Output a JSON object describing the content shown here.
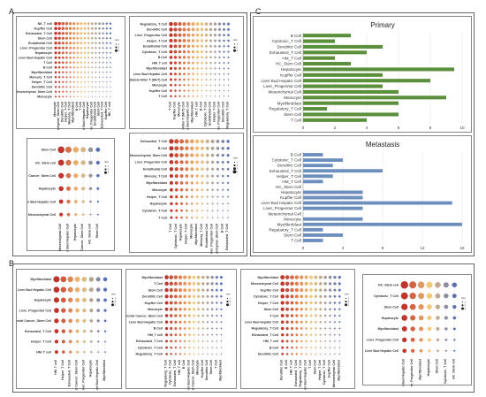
{
  "panels": {
    "A": "A",
    "B": "B",
    "C": "C"
  },
  "colors": {
    "primary_bar": "#5a8f3c",
    "metastasis_bar": "#6d8fbd",
    "dot_high": "#c0352b",
    "dot_mid": "#f2c879",
    "dot_low": "#5b6fb5",
    "grid": "#dddddd"
  },
  "dotplots": {
    "a1": {
      "rows": [
        "NK_T cell",
        "Kupffer Cell",
        "Exhausted_T Cell",
        "Stem Cell",
        "Endothelial Cell",
        "Liver_Progenitor Cell",
        "Hepatocyte",
        "Liver Bud Hepatic Cell",
        "T Cell",
        "B Cell",
        "Myofibroblast",
        "Memory_T Cell",
        "Helper_T Cell",
        "Dendritic Cell",
        "Mesenchymal_Stem Cell",
        "Monocyte"
      ],
      "cols": [
        "Monocyte",
        "Mesenchymal_Stem Cell",
        "Dendritic Cell",
        "Helper_T Cell",
        "Memory_T Cell",
        "Myofibroblast",
        "B Cell",
        "T Cell",
        "Liver Bud Hepatic Cell",
        "Hepatocyte",
        "Liver_Progenitor Cell",
        "Endothelial Cell",
        "Stem Cell",
        "Exhausted_T Cell",
        "Kupffer Cell",
        "NK_T cell"
      ],
      "legend": {
        "title": "size",
        "sizes": [
          "1",
          "2",
          "3"
        ]
      }
    },
    "a2": {
      "rows": [
        "Regulatory_T Cell",
        "Dendritic Cell",
        "Liver_Progenitor Cell",
        "Helper_T Cell",
        "Endothelial Cell",
        "Cytotoxic_T Cell",
        "B Cell",
        "HM_T cell",
        "Myofibroblast",
        "Liver Bud Hepatic Cell",
        "Natural Killer T (NKT) Cell",
        "Monocyte",
        "Kupffer Cell",
        "T Cell"
      ],
      "cols": [
        "T Cell",
        "Kupffer Cell",
        "Monocyte",
        "Natural Killer T (NKT) Cell",
        "Liver Bud Hepatic Cell",
        "Myofibroblast",
        "HM_T cell",
        "B Cell",
        "Cytotoxic_T Cell",
        "Endothelial Cell",
        "Helper_T Cell",
        "Liver_Progenitor Cell",
        "Dendritic Cell",
        "Regulatory_T Cell"
      ],
      "legend": {
        "title": "size",
        "sizes": [
          "1",
          "2",
          "3"
        ]
      }
    },
    "a3": {
      "rows": [
        "Stem Cell",
        "HC_Stem cell",
        "Liver Cancer_Stem Cell",
        "Hepatocyte",
        "Liver Bud Hepatic Cell",
        "Mesenchymal Cell"
      ],
      "cols": [
        "Mesenchymal Cell",
        "Liver Bud Hepatic Cell",
        "Hepatocyte",
        "Liver Cancer_Stem Cell",
        "HC_Stem cell",
        "Stem Cell"
      ],
      "legend": {
        "title": "size",
        "sizes": [
          "1",
          "2",
          "3"
        ]
      }
    },
    "a4": {
      "rows": [
        "Exhausted_T Cell",
        "B Cell",
        "Mesenchymal_Stem Cell",
        "Liver_Progenitor Cell",
        "Endothelial Cell",
        "Memory_T Cell",
        "Myofibroblast",
        "Monocyte",
        "Helper_T Cell",
        "Hepatocyte",
        "Cytotoxic_T Cell",
        "T Cell"
      ],
      "cols": [
        "T Cell",
        "Cytotoxic_T Cell",
        "Hepatocyte",
        "Helper_T Cell",
        "Monocyte",
        "Myofibroblast",
        "Memory_T Cell",
        "Endothelial Cell",
        "Liver_Progenitor Cell",
        "Mesenchymal_Stem Cell",
        "B Cell",
        "Exhausted_T Cell"
      ],
      "legend": {
        "title": "size",
        "sizes": [
          "1",
          "2",
          "3",
          "4"
        ]
      }
    },
    "b1": {
      "rows": [
        "Myofibroblast",
        "Liver Bud Hepatic Cell",
        "Hepatocyte",
        "Liver_Progenitor Cell",
        "Colorectal Cancer_Stem Cell",
        "Exhausted_T Cell",
        "Helper_T Cell",
        "HM_T cell"
      ],
      "cols": [
        "HM_T cell",
        "Helper_T Cell",
        "Exhausted_T Cell",
        "Colorectal Cancer_Stem Cell",
        "Liver_Progenitor Cell",
        "Hepatocyte",
        "Liver Bud Hepatic Cell",
        "Myofibroblast"
      ],
      "legend": {
        "title": "size",
        "sizes": [
          "1",
          "2",
          "3"
        ]
      }
    },
    "b2": {
      "rows": [
        "Myofibroblast",
        "T Cell",
        "Stem Cell",
        "Dendritic Cell",
        "Kupffer Cell",
        "Monocyte",
        "Colorectal Cancer_Stem Cell",
        "Liver Bud Hepatic Cell",
        "B Cell",
        "HM_T cell",
        "Exhausted_T Cell",
        "Cytotoxic_T Cell",
        "Regulatory_T Cell"
      ],
      "cols": [
        "Regulatory_T Cell",
        "Cytotoxic_T Cell",
        "Exhausted_T Cell",
        "HM_T cell",
        "B Cell",
        "Liver Bud Hepatic Cell",
        "Colorectal Cancer_Stem Cell",
        "Monocyte",
        "Kupffer Cell",
        "Dendritic Cell",
        "Stem Cell",
        "T Cell",
        "Myofibroblast"
      ],
      "legend": {
        "title": "size",
        "sizes": [
          "1",
          "2",
          "3"
        ]
      }
    },
    "b3": {
      "rows": [
        "Myofibroblast",
        "Mesenchymal Cell",
        "Kupffer Cell",
        "Cytotoxic_T Cell",
        "Helper_T Cell",
        "Stem Cell",
        "T Cell",
        "Liver Bud Hepatic Cell",
        "Regulatory_T Cell",
        "Exhausted_T Cell",
        "HM_T cell",
        "B Cell",
        "Dendritic Cell"
      ],
      "cols": [
        "Dendritic Cell",
        "B Cell",
        "HM_T cell",
        "Exhausted_T Cell",
        "Regulatory_T Cell",
        "Liver Bud Hepatic Cell",
        "T Cell",
        "Stem Cell",
        "Helper_T Cell",
        "Cytotoxic_T Cell",
        "Kupffer Cell",
        "Mesenchymal Cell",
        "Myofibroblast"
      ],
      "legend": {
        "title": "size",
        "sizes": [
          "1",
          "2",
          "3"
        ]
      }
    },
    "b4": {
      "rows": [
        "HC_Stem cell",
        "Cytotoxic_T Cell",
        "Stem Cell",
        "Hepatocyte",
        "Myofibroblast",
        "Liver_Progenitor Cell",
        "Liver Bud Hepatic Cell"
      ],
      "cols": [
        "Liver Bud Hepatic Cell",
        "Liver_Progenitor Cell",
        "Myofibroblast",
        "Hepatocyte",
        "Stem Cell",
        "Cytotoxic_T Cell",
        "HC_Stem cell"
      ],
      "legend": {
        "title": "size",
        "sizes": [
          "1",
          "2",
          "3"
        ]
      }
    }
  },
  "chart_data": [
    {
      "type": "bar",
      "orientation": "horizontal",
      "title": "Primary",
      "categories": [
        "B Cell",
        "Cytotoxic_T Cell",
        "Dendritic Cell",
        "Exhausted_T Cell",
        "HM_T Cell",
        "HC_Stem Cell",
        "Hepatocyte",
        "Kupffer Cell",
        "Liver Bud Hepatic Cell",
        "Liver_Progenitor Cell",
        "Mesenchymal Cell",
        "Monocyte",
        "Myofibroblast",
        "Regulatory_T Cell",
        "Stem Cell",
        "T Cell"
      ],
      "values": [
        3,
        2,
        5,
        4,
        2,
        3,
        9.5,
        5,
        8,
        5,
        6,
        9,
        6,
        1.5,
        6,
        4
      ],
      "xlim": [
        0,
        10
      ],
      "xticks": [
        "0",
        "2",
        "4",
        "6",
        "8",
        "10"
      ]
    },
    {
      "type": "bar",
      "orientation": "horizontal",
      "title": "Metastasis",
      "categories": [
        "B Cell",
        "Cytotoxic_T Cell",
        "Dendritic Cell",
        "Exhausted_T Cell",
        "Helper_T Cell",
        "HM_T Cell",
        "HC_Stem Cell",
        "Hepatocyte",
        "Kupffer Cell",
        "Liver Bud Hepatic Cell",
        "Liver_Progenitor Cell",
        "Mesenchymal Cell",
        "Monocyte",
        "Myofibroblast",
        "Regulatory_T Cell",
        "Stem Cell",
        "T Cell"
      ],
      "values": [
        2,
        4,
        3,
        8,
        3,
        2,
        0,
        6,
        6,
        15,
        6,
        0,
        6,
        16,
        2,
        4,
        2
      ],
      "xlim": [
        0,
        16
      ],
      "xticks": [
        "0",
        "4",
        "8",
        "12",
        "16"
      ]
    }
  ]
}
